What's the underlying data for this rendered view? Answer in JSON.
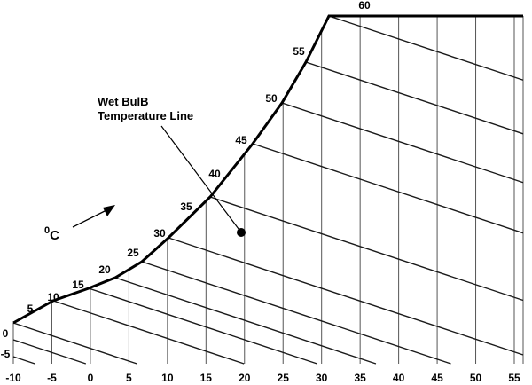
{
  "chart_data": {
    "type": "diagram",
    "x_axis_ticks": [
      "-10",
      "-5",
      "0",
      "5",
      "10",
      "15",
      "20",
      "25",
      "30",
      "35",
      "40",
      "45",
      "50",
      "55"
    ],
    "saturation_curve_labels": [
      "-5",
      "0",
      "5",
      "10",
      "15",
      "20",
      "25",
      "30",
      "35",
      "40",
      "45",
      "50",
      "55",
      "60"
    ],
    "annotation": "Wet BulB Temperature Line",
    "unit_label": {
      "superscript": "0",
      "main": "C"
    },
    "colors": {
      "curve": "#000000",
      "lines": "#1a1a1a",
      "grid": "#555555"
    }
  }
}
